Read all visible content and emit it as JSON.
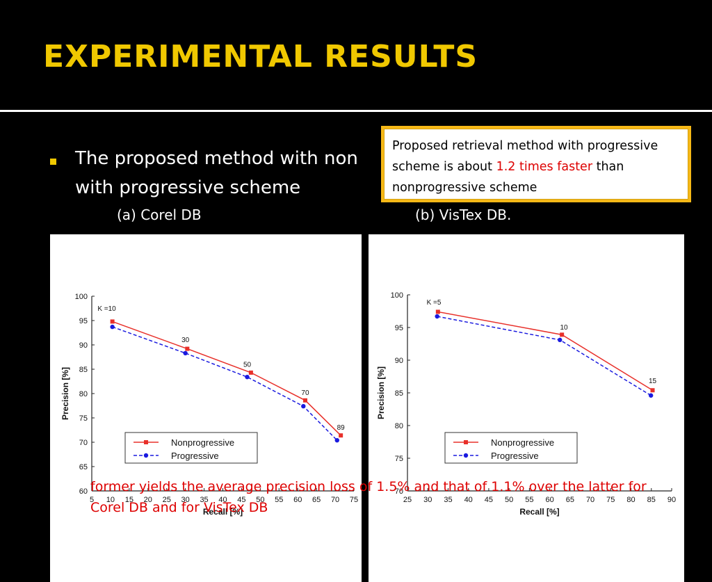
{
  "title": "EXPERIMENTAL RESULTS",
  "bullet": {
    "line1": "The proposed method with non",
    "line2": "with progressive scheme"
  },
  "captions": {
    "a": "(a) Corel DB",
    "b": "(b) VisTex DB."
  },
  "callout": {
    "prefix": "Proposed retrieval method with progressive scheme is about ",
    "highlight": "1.2 times faster",
    "suffix": " than nonprogressive scheme"
  },
  "footnote": "former yields the average precision loss of 1.5% and that of 1.1% over the latter for Corel DB and for VisTex DB",
  "colors": {
    "title": "#f0c800",
    "accent": "#f6b817",
    "red": "#dd0000",
    "nonprog": "#e8302a",
    "prog": "#1a1adf"
  },
  "chart_data": [
    {
      "type": "line",
      "xlabel": "Recall [%]",
      "ylabel": "Precision [%]",
      "xlim": [
        5,
        75
      ],
      "ylim": [
        60,
        100
      ],
      "xticks": [
        "5",
        "10",
        "15",
        "20",
        "25",
        "30",
        "35",
        "40",
        "45",
        "50",
        "55",
        "60",
        "65",
        "70",
        "75"
      ],
      "yticks": [
        "60",
        "65",
        "70",
        "75",
        "80",
        "85",
        "90",
        "95",
        "100"
      ],
      "legend": "center-left",
      "series": [
        {
          "name": "Nonprogressive",
          "style": "solid",
          "marker": "square",
          "x": [
            10.5,
            30.5,
            47.5,
            62,
            71.5
          ],
          "y": [
            94.8,
            89.2,
            84.3,
            78.6,
            71.4
          ]
        },
        {
          "name": "Progressive",
          "style": "dashed",
          "marker": "circle",
          "x": [
            10.5,
            30,
            46.5,
            61.5,
            70.5
          ],
          "y": [
            93.7,
            88.3,
            83.4,
            77.4,
            70.4
          ]
        }
      ],
      "annotations": [
        {
          "text": "K =10",
          "x": 9,
          "y": 97
        },
        {
          "text": "30",
          "x": 30,
          "y": 90.6
        },
        {
          "text": "50",
          "x": 46.5,
          "y": 85.5
        },
        {
          "text": "70",
          "x": 62,
          "y": 79.7
        },
        {
          "text": "89",
          "x": 71.5,
          "y": 72.6
        }
      ]
    },
    {
      "type": "line",
      "xlabel": "Recall [%]",
      "ylabel": "Precision [%]",
      "xlim": [
        25,
        90
      ],
      "ylim": [
        70,
        100
      ],
      "xticks": [
        "25",
        "30",
        "35",
        "40",
        "45",
        "50",
        "55",
        "60",
        "65",
        "70",
        "75",
        "80",
        "85",
        "90"
      ],
      "yticks": [
        "70",
        "75",
        "80",
        "85",
        "90",
        "95",
        "100"
      ],
      "legend": "center-left",
      "series": [
        {
          "name": "Nonprogressive",
          "style": "solid",
          "marker": "square",
          "x": [
            32.5,
            63,
            85.3
          ],
          "y": [
            97.4,
            93.9,
            85.4
          ]
        },
        {
          "name": "Progressive",
          "style": "dashed",
          "marker": "circle",
          "x": [
            32.3,
            62.5,
            84.9
          ],
          "y": [
            96.7,
            93.1,
            84.6
          ]
        }
      ],
      "annotations": [
        {
          "text": "K =5",
          "x": 31.5,
          "y": 98.5
        },
        {
          "text": "10",
          "x": 63.5,
          "y": 94.7
        },
        {
          "text": "15",
          "x": 85.3,
          "y": 86.5
        }
      ]
    }
  ]
}
